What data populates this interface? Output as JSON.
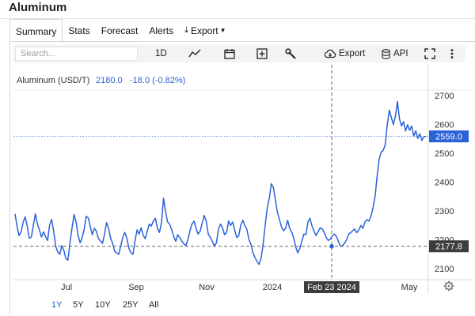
{
  "page": {
    "title": "Aluminum"
  },
  "tabs": [
    {
      "label": "Summary",
      "active": true
    },
    {
      "label": "Stats"
    },
    {
      "label": "Forecast"
    },
    {
      "label": "Alerts"
    },
    {
      "label": "Export"
    }
  ],
  "toolbar": {
    "search_placeholder": "Search...",
    "interval": "1D",
    "export_label": "Export",
    "api_label": "API"
  },
  "legend": {
    "name": "Aluminum (USD/T)",
    "value": "2180.0",
    "change": "-18.0 (-0.82%)"
  },
  "ranges": [
    {
      "label": "1Y",
      "active": true
    },
    {
      "label": "5Y"
    },
    {
      "label": "10Y"
    },
    {
      "label": "25Y"
    },
    {
      "label": "All"
    }
  ],
  "colors": {
    "line": "#2962d9",
    "accent": "#1565c0",
    "crosshair": "#666666",
    "label_bg": "#3d3d3d"
  },
  "chart_data": {
    "type": "line",
    "title": "Aluminum (USD/T)",
    "series": [
      {
        "name": "Aluminum (USD/T)",
        "values": [
          2290,
          2245,
          2215,
          2228,
          2262,
          2280,
          2248,
          2206,
          2210,
          2250,
          2290,
          2255,
          2235,
          2210,
          2228,
          2212,
          2198,
          2252,
          2271,
          2230,
          2178,
          2158,
          2150,
          2180,
          2163,
          2135,
          2130,
          2190,
          2240,
          2288,
          2262,
          2216,
          2190,
          2208,
          2238,
          2282,
          2276,
          2245,
          2218,
          2240,
          2230,
          2205,
          2196,
          2188,
          2220,
          2260,
          2240,
          2205,
          2188,
          2160,
          2155,
          2150,
          2180,
          2210,
          2226,
          2205,
          2170,
          2155,
          2150,
          2198,
          2235,
          2220,
          2242,
          2216,
          2204,
          2230,
          2255,
          2248,
          2265,
          2275,
          2240,
          2226,
          2260,
          2345,
          2298,
          2262,
          2255,
          2236,
          2212,
          2195,
          2218,
          2208,
          2196,
          2186,
          2180,
          2202,
          2232,
          2255,
          2265,
          2240,
          2220,
          2230,
          2258,
          2285,
          2265,
          2220,
          2208,
          2195,
          2178,
          2190,
          2236,
          2255,
          2242,
          2218,
          2226,
          2266,
          2250,
          2262,
          2233,
          2208,
          2215,
          2252,
          2268,
          2249,
          2236,
          2200,
          2185,
          2155,
          2138,
          2125,
          2115,
          2138,
          2188,
          2252,
          2310,
          2345,
          2395,
          2382,
          2338,
          2296,
          2270,
          2245,
          2232,
          2240,
          2268,
          2240,
          2228,
          2206,
          2175,
          2155,
          2170,
          2196,
          2220,
          2218,
          2262,
          2275,
          2248,
          2230,
          2215,
          2228,
          2242,
          2238,
          2226,
          2208,
          2198,
          2202,
          2214,
          2220,
          2212,
          2195,
          2178,
          2180,
          2188,
          2200,
          2220,
          2225,
          2232,
          2238,
          2225,
          2234,
          2250,
          2240,
          2262,
          2270,
          2265,
          2282,
          2312,
          2350,
          2420,
          2480,
          2505,
          2510,
          2530,
          2600,
          2650,
          2625,
          2600,
          2630,
          2680,
          2620,
          2595,
          2610,
          2578,
          2600,
          2580,
          2595,
          2560,
          2578,
          2552,
          2568,
          2545,
          2558,
          2559
        ]
      }
    ],
    "x_labels": [
      "Jul",
      "Sep",
      "Nov",
      "2024",
      "May"
    ],
    "crosshair": {
      "x_label": "Feb 23 2024",
      "value_label": "2177.8"
    },
    "last_value_label": "2559.0",
    "y_ticks": [
      2100,
      2200,
      2300,
      2400,
      2500,
      2600,
      2700
    ],
    "ylim": [
      2062,
      2802
    ]
  }
}
